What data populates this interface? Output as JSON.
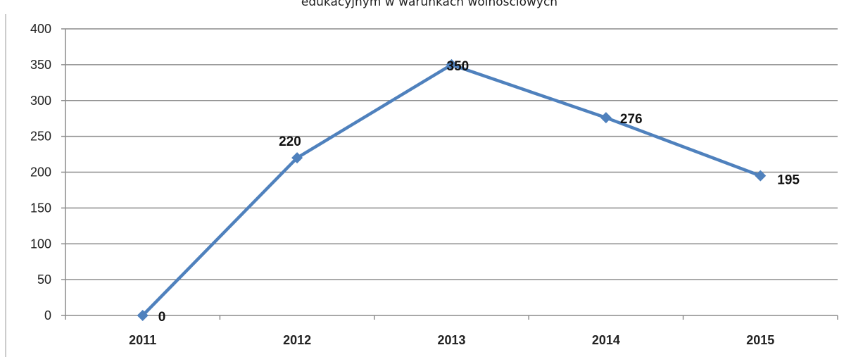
{
  "chart_data": {
    "type": "line",
    "title": "edukacyjnym w warunkach wolnościowych",
    "categories": [
      "2011",
      "2012",
      "2013",
      "2014",
      "2015"
    ],
    "series": [
      {
        "values": [
          0,
          220,
          350,
          276,
          195
        ],
        "data_labels": [
          "0",
          "220",
          "350",
          "276",
          "195"
        ]
      }
    ],
    "ylim": [
      0,
      400
    ],
    "yticks": [
      0,
      50,
      100,
      150,
      200,
      250,
      300,
      350,
      400
    ],
    "ytick_labels": [
      "0",
      "50",
      "100",
      "150",
      "200",
      "250",
      "300",
      "350",
      "400"
    ],
    "grid": true,
    "legend": "none",
    "colors": {
      "series": "#4f81bd",
      "grid": "#8c8c8c",
      "axis": "#8c8c8c"
    }
  }
}
